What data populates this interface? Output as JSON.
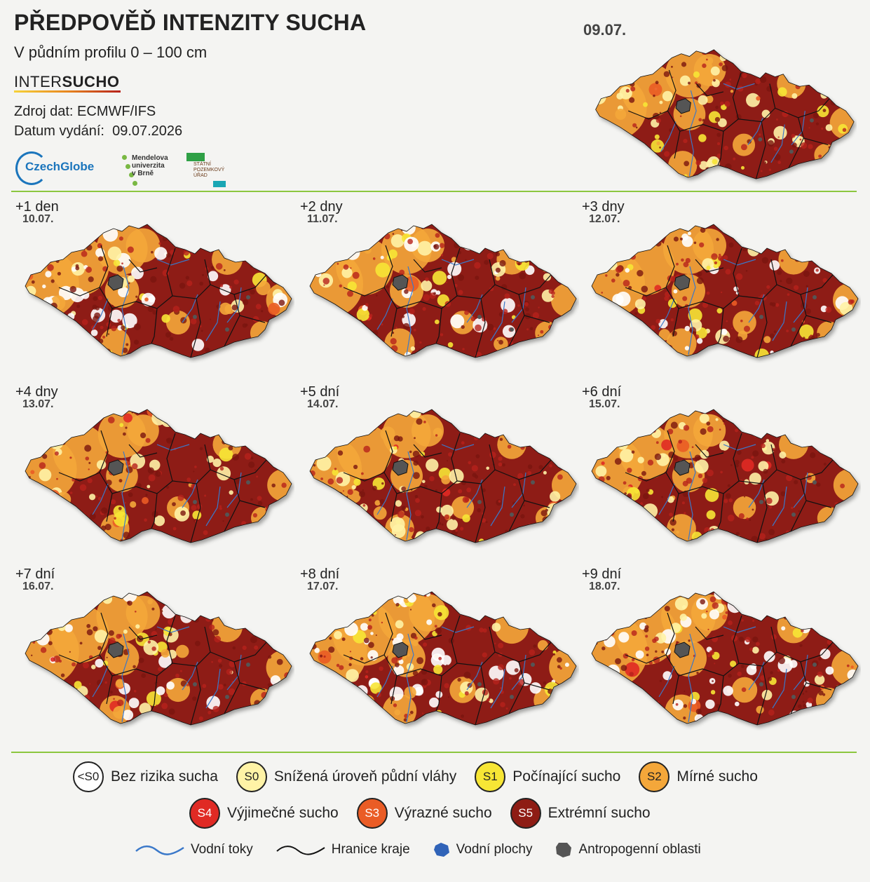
{
  "header": {
    "title": "PŘEDPOVĚĎ INTENZITY SUCHA",
    "subtitle": "V půdním profilu 0 – 100 cm",
    "brand_light": "INTER",
    "brand_bold": "SUCHO",
    "source": "Zdroj dat: ECMWF/IFS",
    "issued_label": "Datum vydání:",
    "issued_date": "09.07.2026"
  },
  "logos": {
    "czechglobe": "CzechGlobe",
    "mendel_lines": [
      "Mendelova",
      "univerzita",
      "v Brně"
    ],
    "spu_lines": [
      "STÁTNÍ",
      "POZEMKOVÝ",
      "ÚŘAD"
    ]
  },
  "main_map": {
    "date": "09.07."
  },
  "forecasts": [
    {
      "offset": "+1 den",
      "date": "10.07.",
      "severity": 0.78
    },
    {
      "offset": "+2 dny",
      "date": "11.07.",
      "severity": 0.8
    },
    {
      "offset": "+3 dny",
      "date": "12.07.",
      "severity": 0.8
    },
    {
      "offset": "+4 dny",
      "date": "13.07.",
      "severity": 0.86
    },
    {
      "offset": "+5 dní",
      "date": "14.07.",
      "severity": 0.85
    },
    {
      "offset": "+6 dní",
      "date": "15.07.",
      "severity": 0.84
    },
    {
      "offset": "+7 dní",
      "date": "16.07.",
      "severity": 0.78
    },
    {
      "offset": "+8 dní",
      "date": "17.07.",
      "severity": 0.66
    },
    {
      "offset": "+9 dní",
      "date": "18.07.",
      "severity": 0.7
    }
  ],
  "legend": {
    "classes": [
      {
        "code": "<S0",
        "label": "Bez rizika sucha",
        "color": "#ffffff",
        "text_color": "#222222"
      },
      {
        "code": "S0",
        "label": "Snížená úroveň půdní vláhy",
        "color": "#fff3a6",
        "text_color": "#222222"
      },
      {
        "code": "S1",
        "label": "Počínající sucho",
        "color": "#f7e635",
        "text_color": "#222222"
      },
      {
        "code": "S2",
        "label": "Mírné sucho",
        "color": "#f4a73a",
        "text_color": "#222222"
      },
      {
        "code": "S4",
        "label": "Výjimečné sucho",
        "color": "#e02a24",
        "text_color": "#ffffff"
      },
      {
        "code": "S3",
        "label": "Výrazné sucho",
        "color": "#ea5c25",
        "text_color": "#ffffff"
      },
      {
        "code": "S5",
        "label": "Extrémní sucho",
        "color": "#8e1c14",
        "text_color": "#ffffff"
      }
    ],
    "features": [
      {
        "label": "Vodní toky",
        "icon": "river-line-icon",
        "color": "#3a78c9"
      },
      {
        "label": "Hranice kraje",
        "icon": "border-line-icon",
        "color": "#111111"
      },
      {
        "label": "Vodní plochy",
        "icon": "water-body-icon",
        "color": "#3063b8"
      },
      {
        "label": "Antropogenní oblasti",
        "icon": "urban-area-icon",
        "color": "#555555"
      }
    ]
  }
}
